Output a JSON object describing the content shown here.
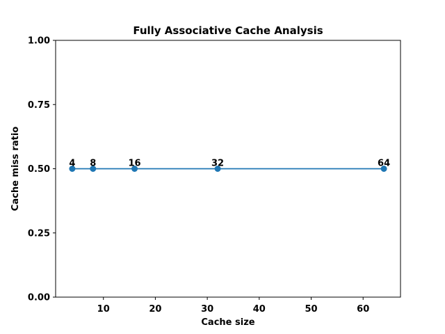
{
  "chart_data": {
    "type": "line",
    "title": "Fully Associative Cache Analysis",
    "xlabel": "Cache size",
    "ylabel": "Cache miss ratio",
    "xlim": [
      0.8,
      67.2
    ],
    "ylim": [
      0,
      1
    ],
    "xticks": [
      10,
      20,
      30,
      40,
      50,
      60
    ],
    "yticks": [
      "0.00",
      "0.25",
      "0.50",
      "0.75",
      "1.00"
    ],
    "grid": false,
    "series": [
      {
        "color": "#1f77b4",
        "x": [
          4,
          8,
          16,
          32,
          64
        ],
        "y": [
          0.5,
          0.5,
          0.5,
          0.5,
          0.5
        ],
        "point_labels": [
          "4",
          "8",
          "16",
          "32",
          "64"
        ]
      }
    ]
  }
}
